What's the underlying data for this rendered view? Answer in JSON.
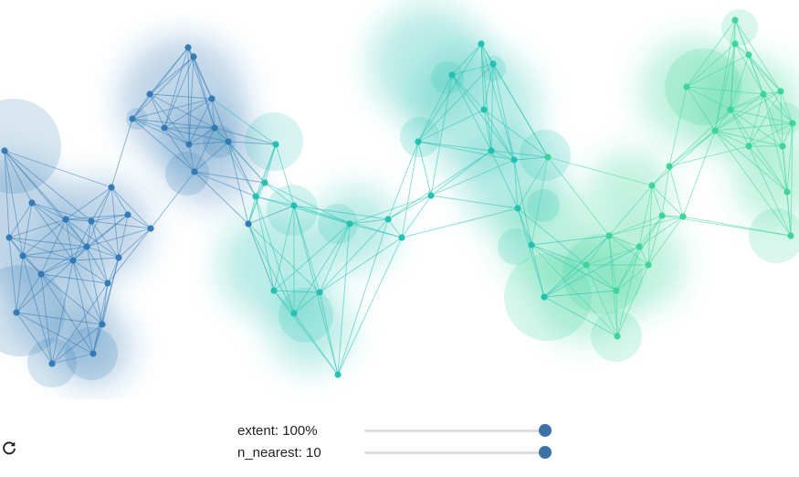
{
  "controls": {
    "reset_icon": "refresh-icon",
    "extent": {
      "label": "extent: 100%",
      "fraction": 1.0
    },
    "n_nearest": {
      "label": "n_nearest: 10",
      "fraction": 1.0
    }
  },
  "colors": {
    "blue": "#2f78b4",
    "teal": "#1fc0b0",
    "green": "#3ad39a",
    "slider_track": "#dcdcdc",
    "slider_thumb": "#3d72a8",
    "label_text": "#222222"
  }
}
